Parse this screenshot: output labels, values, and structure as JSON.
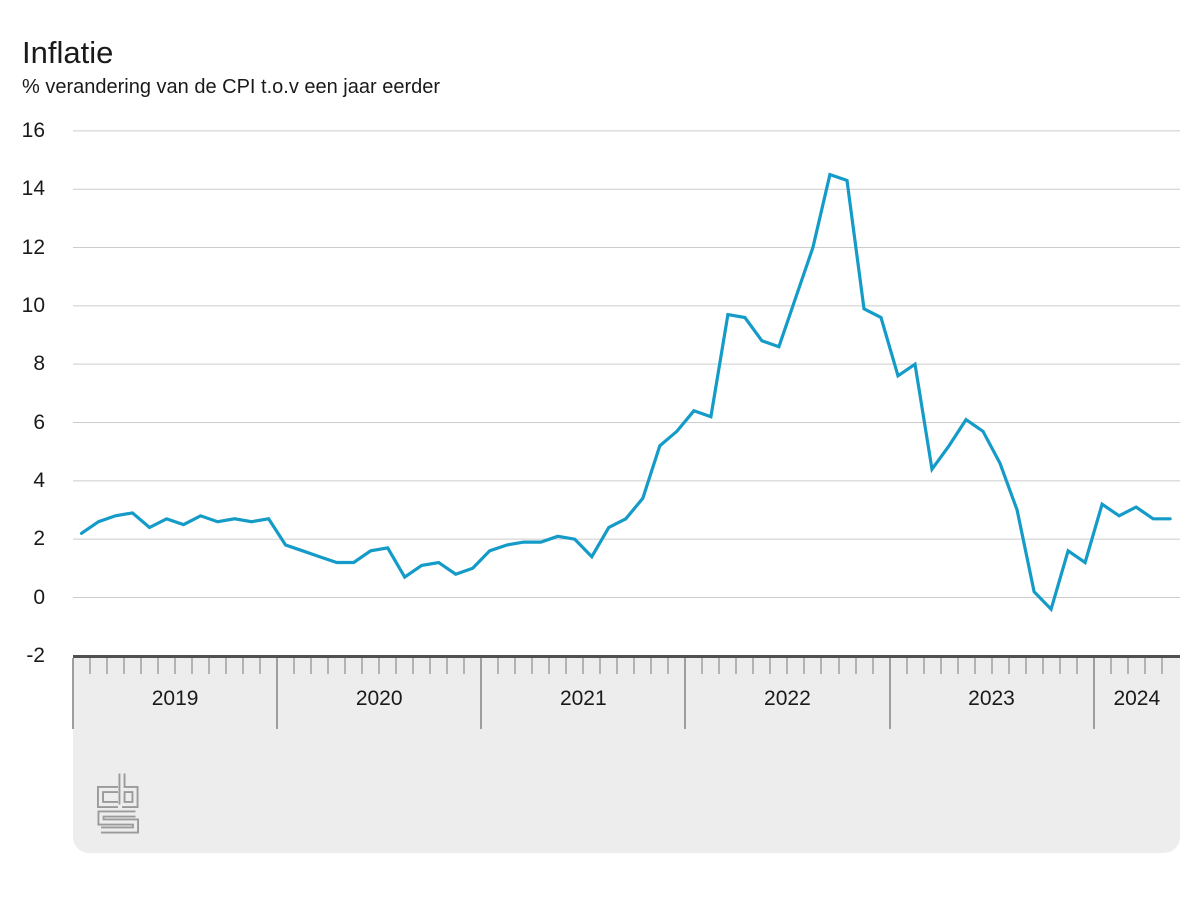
{
  "page": {
    "title": "Inflatie",
    "subtitle": "% verandering van de CPI t.o.v een jaar eerder"
  },
  "chart_data": {
    "type": "line",
    "title": "Inflatie",
    "subtitle": "% verandering van de CPI t.o.v een jaar eerder",
    "x_axis": {
      "unit": "month",
      "start": "2019-01",
      "end": "2024-05",
      "year_labels": [
        "2019",
        "2020",
        "2021",
        "2022",
        "2023",
        "2024"
      ],
      "months_per_year": [
        12,
        12,
        12,
        12,
        12,
        5
      ]
    },
    "y_axis": {
      "ticks": [
        16,
        14,
        12,
        10,
        8,
        6,
        4,
        2,
        0,
        -2
      ],
      "ylim": [
        -2,
        16
      ],
      "grid": true
    },
    "legend": false,
    "series": [
      {
        "name": "Inflatie",
        "color": "#149bc8",
        "values": [
          2.2,
          2.6,
          2.8,
          2.9,
          2.4,
          2.7,
          2.5,
          2.8,
          2.6,
          2.7,
          2.6,
          2.7,
          1.8,
          1.6,
          1.4,
          1.2,
          1.2,
          1.6,
          1.7,
          0.7,
          1.1,
          1.2,
          0.8,
          1.0,
          1.6,
          1.8,
          1.9,
          1.9,
          2.1,
          2.0,
          1.4,
          2.4,
          2.7,
          3.4,
          5.2,
          5.7,
          6.4,
          6.2,
          9.7,
          9.6,
          8.8,
          8.6,
          10.3,
          12.0,
          14.5,
          14.3,
          9.9,
          9.6,
          7.6,
          8.0,
          4.4,
          5.2,
          6.1,
          5.7,
          4.6,
          3.0,
          0.2,
          -0.4,
          1.6,
          1.2,
          3.2,
          2.8,
          3.1,
          2.7,
          2.7
        ]
      }
    ]
  },
  "footer": {
    "logo": "cbs-logo"
  },
  "colors": {
    "line": "#149bc8",
    "grid": "#cccccc",
    "band_background": "#ededed",
    "band_border": "#505050",
    "month_tick": "#b3b3b3",
    "year_tick": "#9e9e9e",
    "text": "#1a1a1a",
    "logo": "#9a9a9a"
  }
}
